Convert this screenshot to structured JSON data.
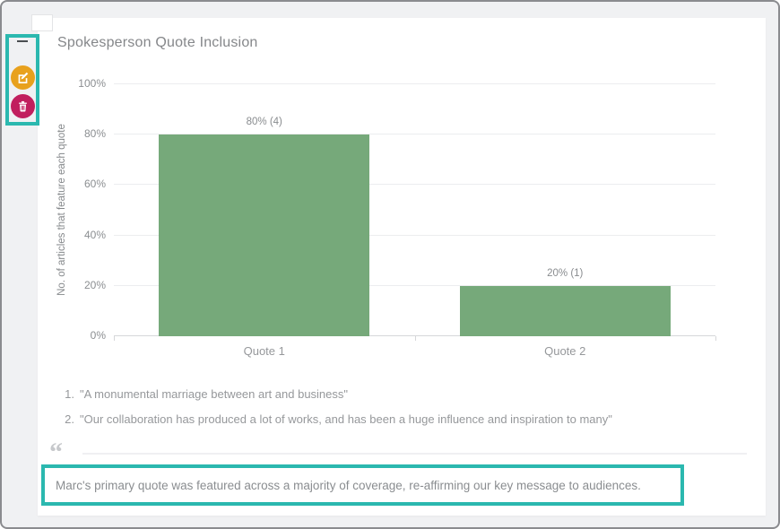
{
  "accent": {
    "highlight": "#2bb8af",
    "edit": "#e8a11d",
    "delete": "#c11f5e"
  },
  "sidebar": {
    "menu_icon": "hamburger",
    "edit_icon": "pencil-square",
    "delete_icon": "trash"
  },
  "card": {
    "title": "Spokesperson Quote Inclusion"
  },
  "chart_data": {
    "type": "bar",
    "title": "Spokesperson Quote Inclusion",
    "categories": [
      "Quote 1",
      "Quote 2"
    ],
    "values": [
      80,
      20
    ],
    "counts": [
      4,
      1
    ],
    "data_labels": [
      "80% (4)",
      "20% (1)"
    ],
    "xlabel": "",
    "ylabel": "No. of articles that feature each quote",
    "y_ticks": [
      "0%",
      "20%",
      "40%",
      "60%",
      "80%",
      "100%"
    ],
    "ylim": [
      0,
      100
    ],
    "grid": true,
    "legend": false,
    "bar_color": "#76a97a"
  },
  "footnotes": [
    {
      "num": "1.",
      "text": "\"A monumental marriage between art and business\""
    },
    {
      "num": "2.",
      "text": "\"Our collaboration has produced a lot of works, and has been a huge influence and inspiration to many\""
    }
  ],
  "commentary": {
    "quote_icon": "“",
    "text": "Marc's primary quote was featured across a majority of coverage, re-affirming our key message to audiences."
  }
}
